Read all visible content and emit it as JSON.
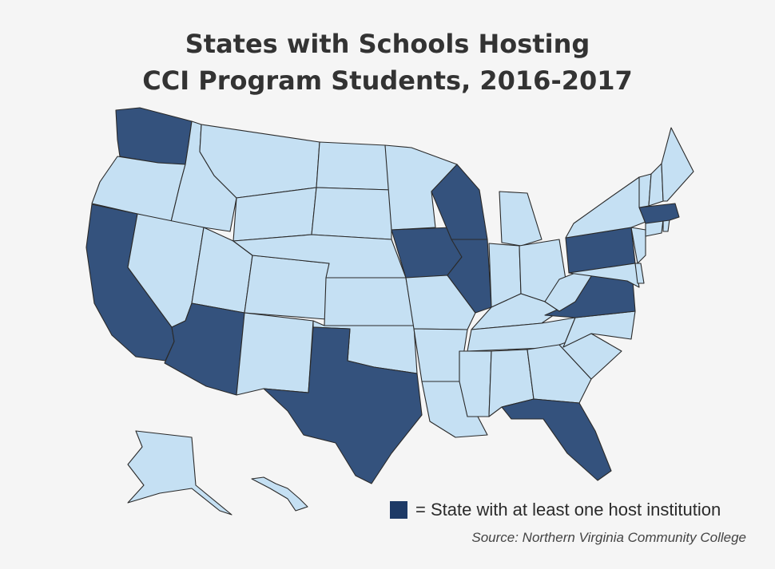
{
  "title": {
    "line1": "States with Schools Hosting",
    "line2": "CCI Program Students, 2016-2017"
  },
  "legend": {
    "label": "= State with at least one host institution",
    "color": "#1e3a66"
  },
  "source": "Source: Northern Virginia Community College",
  "colors": {
    "host": "#34527d",
    "nonhost": "#c5e0f3",
    "border": "#2a2a2a",
    "background": "#f5f5f5"
  },
  "host_states": [
    "WA",
    "CA",
    "AZ",
    "TX",
    "IA",
    "WI",
    "IL",
    "PA",
    "VA",
    "MA",
    "FL"
  ]
}
